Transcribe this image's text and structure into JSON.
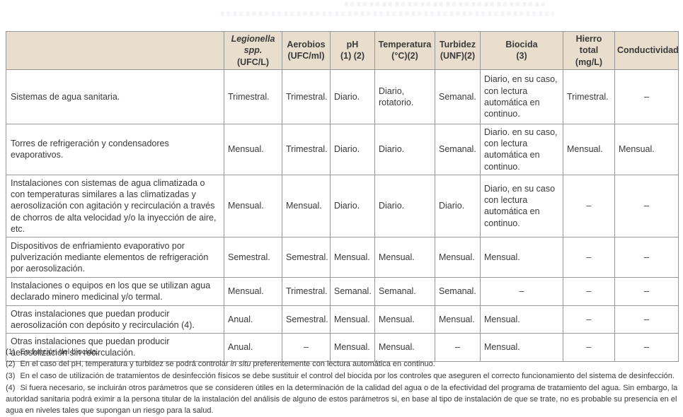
{
  "colors": {
    "header_bg": "#e9ddcd",
    "border": "#979797",
    "text": "#3a3a3a"
  },
  "table": {
    "columns": [
      {
        "name": "installation-type",
        "lines": []
      },
      {
        "name": "legionella",
        "lines": [
          {
            "text": "Legionella",
            "italic": true
          },
          {
            "text": "spp.",
            "italic": true
          },
          {
            "text": "(UFC/L)"
          }
        ]
      },
      {
        "name": "aerobios",
        "lines": [
          {
            "text": "Aerobios"
          },
          {
            "text": "(UFC/ml)"
          }
        ]
      },
      {
        "name": "ph",
        "lines": [
          {
            "text": "pH"
          },
          {
            "text": "(1) (2)"
          }
        ]
      },
      {
        "name": "temperatura",
        "lines": [
          {
            "text": "Temperatura"
          },
          {
            "text": "(°C)(2)"
          }
        ]
      },
      {
        "name": "turbidez",
        "lines": [
          {
            "text": "Turbidez"
          },
          {
            "text": "(UNF)(2)"
          }
        ]
      },
      {
        "name": "biocida",
        "lines": [
          {
            "text": "Biocida"
          },
          {
            "text": "(3)"
          }
        ]
      },
      {
        "name": "hierro-total",
        "lines": [
          {
            "text": "Hierro"
          },
          {
            "text": "total"
          },
          {
            "text": "(mg/L)"
          }
        ]
      },
      {
        "name": "conductividad",
        "lines": [
          {
            "text": "Conductividad"
          }
        ]
      }
    ],
    "rows": [
      {
        "label": "Sistemas de agua sanitaria.",
        "values": [
          "Trimestral.",
          "Trimestral.",
          "Diario.",
          "Diario, rotatorio.",
          "Semanal.",
          "Diario, en su caso, con lectura automática en continuo.",
          "Trimestral.",
          "–"
        ]
      },
      {
        "label": "Torres de refrigeración y condensadores evaporativos.",
        "values": [
          "Mensual.",
          "Trimestral.",
          "Diario.",
          "Diario.",
          "Semanal.",
          "Diario. en su caso, con lectura automática en continuo.",
          "Mensual.",
          "Mensual."
        ]
      },
      {
        "label": "Instalaciones con sistemas de agua climatizada o con temperaturas similares a las climatizadas y aerosolización con agitación y recirculación a través de chorros de alta velocidad y/o la inyección de aire, etc.",
        "values": [
          "Mensual.",
          "Mensual.",
          "Diario.",
          "Diario.",
          "Diario.",
          "Diario, en su caso con lectura automática en continuo.",
          "–",
          "–"
        ]
      },
      {
        "label": "Dispositivos de enfriamiento evaporativo por pulverización mediante elementos de refrigeración por aerosolización.",
        "values": [
          "Semestral.",
          "Semestral.",
          "Mensual.",
          "Mensual.",
          "Mensual.",
          "Mensual.",
          "–",
          "–"
        ]
      },
      {
        "label": "Instalaciones o equipos en los que se utilizan agua declarado minero medicinal y/o termal.",
        "values": [
          "Mensual.",
          "Trimestral.",
          "Semanal.",
          "Semanal.",
          "Semanal.",
          "–",
          "–",
          "–"
        ]
      },
      {
        "label": "Otras instalaciones que puedan producir aerosolización con depósito y recirculación (4).",
        "values": [
          "Anual.",
          "Semestral.",
          "Mensual.",
          "Mensual.",
          "Mensual.",
          "Mensual.",
          "–",
          "–"
        ]
      },
      {
        "label": "Otras instalaciones que puedan producir aerosolización sin recirculación.",
        "values": [
          "Anual.",
          "–",
          "Mensual.",
          "Mensual.",
          "–",
          "Mensual.",
          "–",
          "–"
        ]
      }
    ]
  },
  "footnotes": [
    {
      "marker": "(1)",
      "parts": [
        {
          "text": "En función del biocida."
        }
      ]
    },
    {
      "marker": "(2)",
      "parts": [
        {
          "text": "En el caso del pH, temperatura y turbidez se podrá controlar "
        },
        {
          "text": "in situ",
          "italic": true
        },
        {
          "text": " preferentemente con lectura automática en continuo."
        }
      ]
    },
    {
      "marker": "(3)",
      "parts": [
        {
          "text": "En el caso de utilización de tratamientos de desinfección físicos se debe sustituir el control del biocida por los controles que aseguren el correcto funcionamiento del sistema de desinfección."
        }
      ]
    },
    {
      "marker": "(4)",
      "parts": [
        {
          "text": "Si fuera necesario, se incluirán otros parámetros que se consideren útiles en la determinación de la calidad del agua o de la efectividad del programa de tratamiento del agua. Sin embargo, la autoridad sanitaria podrá eximir a la persona titular de la instalación del análisis de alguno de estos parámetros si, en base al tipo de instalación de que se trate, no es probable su presencia en el agua en niveles tales que supongan un riesgo para la salud."
        }
      ]
    }
  ]
}
